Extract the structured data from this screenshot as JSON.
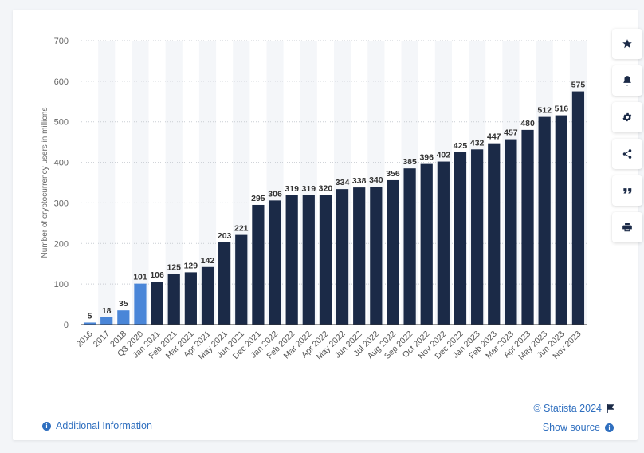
{
  "chart_data": {
    "type": "bar",
    "title": "",
    "xlabel": "",
    "ylabel": "Number of cryptocurrency users in millions",
    "ylim": [
      0,
      700
    ],
    "yticks": [
      0,
      100,
      200,
      300,
      400,
      500,
      600,
      700
    ],
    "grid": true,
    "categories": [
      "2016",
      "2017",
      "2018",
      "Q3 2020",
      "Jan 2021",
      "Feb 2021",
      "Mar 2021",
      "Apr 2021",
      "May 2021",
      "Jun 2021",
      "Dec 2021",
      "Jan 2022",
      "Feb 2022",
      "Mar 2022",
      "Apr 2022",
      "May 2022",
      "Jun 2022",
      "Jul 2022",
      "Aug 2022",
      "Sep 2022",
      "Oct 2022",
      "Nov 2022",
      "Dec 2022",
      "Jan 2023",
      "Feb 2023",
      "Mar 2023",
      "Apr 2023",
      "May 2023",
      "Jun 2023",
      "Nov 2023"
    ],
    "values": [
      5,
      18,
      35,
      101,
      106,
      125,
      129,
      142,
      203,
      221,
      295,
      306,
      319,
      319,
      320,
      334,
      338,
      340,
      356,
      385,
      396,
      402,
      425,
      432,
      447,
      457,
      480,
      512,
      516,
      575
    ],
    "colors": {
      "highlight": "#4a86d8",
      "default": "#1b2a47"
    },
    "highlight_count": 4
  },
  "toolbar": {
    "icons": [
      "star-icon",
      "bell-icon",
      "gear-icon",
      "share-icon",
      "quote-icon",
      "print-icon"
    ]
  },
  "footer": {
    "additional_info": "Additional Information",
    "copyright": "© Statista 2024",
    "show_source": "Show source"
  }
}
